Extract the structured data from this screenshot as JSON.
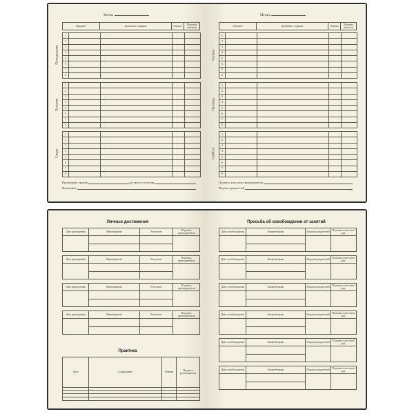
{
  "weekly": {
    "month_label": "Месяц",
    "headers": [
      "Предмет",
      "Домашнее задание",
      "Оценка",
      "Подпись учителя"
    ],
    "lesson_numbers": [
      "1",
      "2",
      "3",
      "4",
      "5",
      "6",
      "7",
      "8"
    ],
    "left_days": [
      "Понедельник",
      "Вторник",
      "Среда"
    ],
    "right_days": [
      "Четверг",
      "Пятница",
      "Суббота"
    ],
    "left_footer": {
      "missed": "Пропущено уроков",
      "sick": "из них по болезни",
      "behavior": "Поведение"
    },
    "right_footer": {
      "teacher_sign": "Подпись классного руководителя",
      "parent_sign": "Подпись родителей"
    }
  },
  "achievements": {
    "title": "Личные достижения",
    "headers": [
      "Дата проведения",
      "Мероприятие",
      "Результат",
      "Подпись преподавателя"
    ]
  },
  "practice": {
    "title": "Практика",
    "headers": [
      "Дата",
      "Содержание",
      "Оценка",
      "Подпись руководителя"
    ]
  },
  "exemption": {
    "title": "Просьба об освобождении от занятий",
    "headers": [
      "Дата освобождения",
      "Комментарии",
      "Подпись родителей",
      "Подпись классного рук."
    ]
  },
  "colors": {
    "paper": "#f4f0e2",
    "cover": "#2e2e2e",
    "lines": "#5a5a48"
  }
}
